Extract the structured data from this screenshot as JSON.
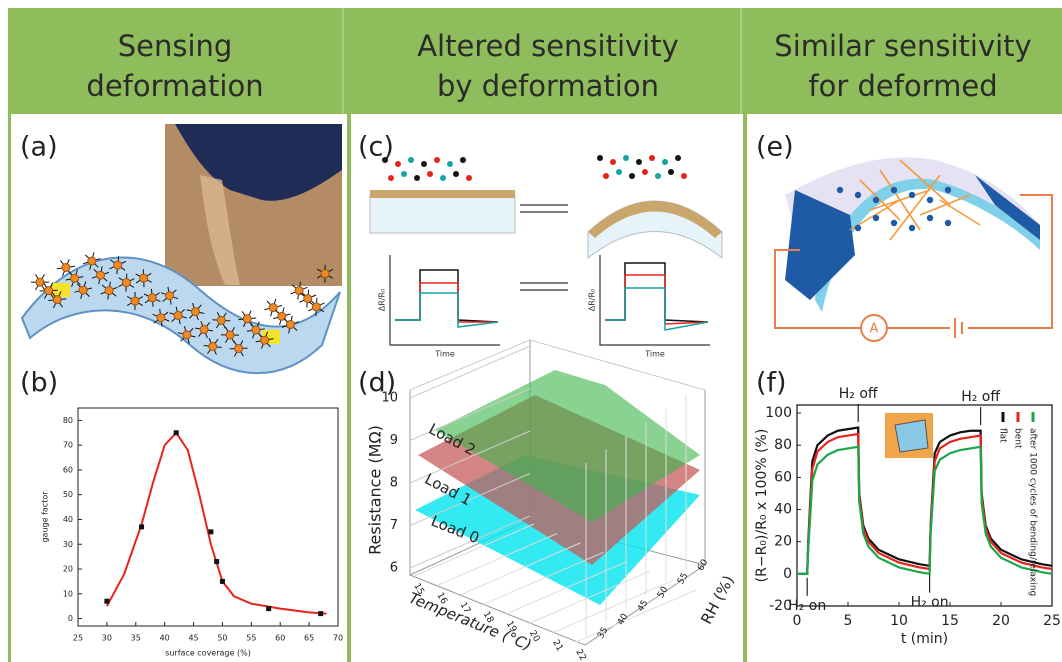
{
  "header": {
    "columns": [
      [
        "Sensing",
        "deformation"
      ],
      [
        "Altered sensitivity",
        "by deformation"
      ],
      [
        "Similar sensitivity",
        "for deformed"
      ]
    ]
  },
  "panel_labels": [
    "(a)",
    "(b)",
    "(c)",
    "(d)",
    "(e)",
    "(f)"
  ],
  "panel_b": {
    "type": "scatter",
    "x_label": "surface coverage (%)",
    "y_label": "gauge factor",
    "x": [
      30,
      36,
      42,
      48,
      49,
      50,
      58,
      67
    ],
    "values": [
      7,
      37,
      75,
      35,
      23,
      15,
      4,
      2
    ],
    "color": "#111111",
    "fit": {
      "x": [
        30,
        33,
        36,
        38,
        40,
        42,
        44,
        46,
        48,
        50,
        52,
        55,
        60,
        65,
        68
      ],
      "values": [
        5,
        18,
        38,
        55,
        70,
        75,
        68,
        50,
        30,
        15,
        9,
        6,
        4,
        2.5,
        2
      ],
      "color": "#e8231c"
    },
    "xlim": [
      25,
      70
    ],
    "ylim": [
      -3,
      85
    ],
    "xticks": [
      25,
      30,
      35,
      40,
      45,
      50,
      55,
      60,
      65,
      70
    ],
    "yticks": [
      0,
      10,
      20,
      30,
      40,
      50,
      60,
      70,
      80
    ]
  },
  "panel_c": {
    "y_label": "ΔR/R₀",
    "x_label": "Time"
  },
  "panel_d": {
    "z_label": "Resistance (MΩ)",
    "x_label": "Temperature (°C)",
    "y_label": "RH (%)",
    "zticks": [
      6,
      7,
      8,
      9,
      10
    ],
    "xticks": [
      15,
      16,
      17,
      18,
      19,
      20,
      21,
      22
    ],
    "yticks": [
      35,
      40,
      45,
      50,
      55,
      60
    ],
    "planes": [
      "Load 2",
      "Load 1",
      "Load 0"
    ]
  },
  "panel_e": {
    "meter": "A"
  },
  "panel_f": {
    "type": "line",
    "x_label": "t (min)",
    "y_label": "(R−R₀)/R₀ x 100% (%)",
    "x": [
      0,
      1,
      1.1,
      1.5,
      2,
      3,
      4,
      5,
      6,
      6.1,
      6.5,
      7,
      8,
      10,
      12,
      13,
      13.1,
      13.5,
      14,
      15,
      16,
      17,
      18,
      18.1,
      18.5,
      19,
      20,
      22,
      24,
      25
    ],
    "series": [
      {
        "name": "flat",
        "color": "#111111",
        "values": [
          0,
          0,
          20,
          70,
          80,
          86,
          89,
          90,
          91,
          50,
          30,
          22,
          15,
          9,
          6,
          5,
          30,
          75,
          82,
          86,
          88,
          89,
          89,
          50,
          30,
          22,
          15,
          9,
          6,
          5
        ]
      },
      {
        "name": "bent",
        "color": "#e8231c",
        "values": [
          0,
          0,
          18,
          65,
          76,
          82,
          85,
          86,
          87,
          48,
          28,
          20,
          13,
          7,
          4,
          3,
          28,
          70,
          78,
          82,
          84,
          85,
          86,
          48,
          28,
          20,
          13,
          7,
          4,
          3
        ]
      },
      {
        "name": "after 1000 cycles of bending/relaxing",
        "color": "#1aa64a",
        "values": [
          0,
          0,
          15,
          58,
          68,
          74,
          77,
          78,
          79,
          45,
          25,
          17,
          10,
          4,
          1,
          0,
          25,
          64,
          71,
          75,
          77,
          78,
          79,
          44,
          25,
          17,
          10,
          4,
          1,
          0
        ]
      }
    ],
    "annotations": [
      "H₂ off",
      "H₂ on",
      "H₂ off",
      "H₂ on"
    ],
    "xlim": [
      0,
      25
    ],
    "ylim": [
      -20,
      105
    ],
    "xticks": [
      0,
      5,
      10,
      15,
      20,
      25
    ],
    "yticks": [
      -20,
      0,
      20,
      40,
      60,
      80,
      100
    ]
  }
}
